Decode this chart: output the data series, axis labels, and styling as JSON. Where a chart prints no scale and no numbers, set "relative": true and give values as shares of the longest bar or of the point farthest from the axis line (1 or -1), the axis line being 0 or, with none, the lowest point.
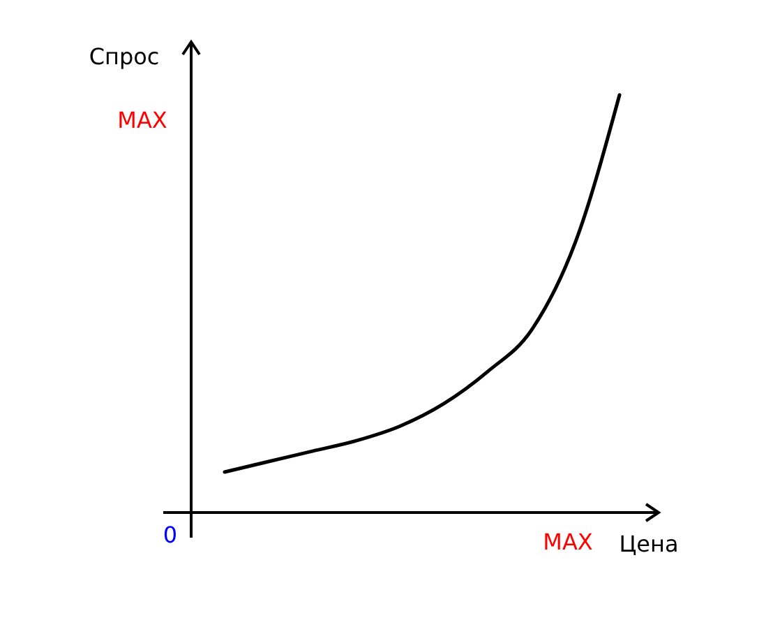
{
  "chart_data": {
    "type": "line",
    "xlabel": "Цена",
    "ylabel": "Спрос",
    "relative": true,
    "categories": [
      null,
      null,
      null,
      null,
      null,
      null,
      null,
      null,
      null,
      null
    ],
    "series": [
      {
        "color": "#000000",
        "values": [
          0.097,
          0.122,
          0.147,
          0.172,
          0.207,
          0.261,
          0.338,
          0.438,
          0.649,
          1
        ]
      }
    ],
    "annotations": [
      "MAX",
      "0",
      "MAX"
    ],
    "marker": "none",
    "line_style": "solid"
  }
}
